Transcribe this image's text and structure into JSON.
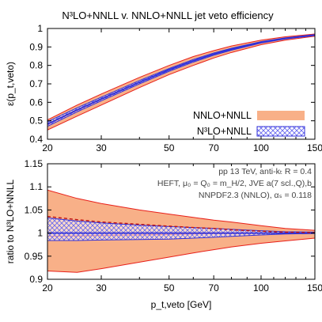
{
  "chart_data": [
    {
      "type": "area",
      "title": "N³LO+NNLL v. NNLO+NNLL jet veto efficiency",
      "ylabel": "ε(p_t,veto)",
      "xscale": "log",
      "xlim": [
        20,
        150
      ],
      "ylim": [
        0.4,
        1.0
      ],
      "x_ticks": [
        20,
        30,
        50,
        70,
        100,
        150
      ],
      "y_ticks": [
        0.4,
        0.5,
        0.6,
        0.7,
        0.8,
        0.9,
        1
      ],
      "legend_position": "right",
      "series": [
        {
          "name": "NNLO+NNLL",
          "color": "#f8b088",
          "edge_color": "#e8201a",
          "x": [
            20,
            25,
            30,
            40,
            50,
            60,
            70,
            80,
            100,
            120,
            150
          ],
          "upper": [
            0.505,
            0.585,
            0.645,
            0.735,
            0.8,
            0.848,
            0.88,
            0.905,
            0.937,
            0.955,
            0.97
          ],
          "lower": [
            0.45,
            0.525,
            0.585,
            0.68,
            0.75,
            0.8,
            0.84,
            0.87,
            0.912,
            0.937,
            0.958
          ],
          "central": [
            0.478,
            0.555,
            0.615,
            0.708,
            0.776,
            0.825,
            0.862,
            0.888,
            0.925,
            0.946,
            0.964
          ]
        },
        {
          "name": "N³LO+NNLL",
          "color": "#6a6aee",
          "x": [
            20,
            25,
            30,
            40,
            50,
            60,
            70,
            80,
            100,
            120,
            150
          ],
          "upper": [
            0.495,
            0.57,
            0.628,
            0.718,
            0.783,
            0.832,
            0.867,
            0.893,
            0.929,
            0.949,
            0.967
          ],
          "lower": [
            0.47,
            0.548,
            0.608,
            0.7,
            0.768,
            0.818,
            0.855,
            0.882,
            0.921,
            0.943,
            0.962
          ],
          "central": [
            0.482,
            0.559,
            0.618,
            0.709,
            0.776,
            0.825,
            0.861,
            0.888,
            0.925,
            0.946,
            0.964
          ]
        }
      ]
    },
    {
      "type": "area",
      "xlabel": "p_t,veto [GeV]",
      "ylabel": "ratio to N³LO+NNLL",
      "xscale": "log",
      "xlim": [
        20,
        150
      ],
      "ylim": [
        0.9,
        1.15
      ],
      "x_ticks": [
        20,
        30,
        50,
        70,
        100,
        150
      ],
      "y_ticks": [
        0.9,
        0.95,
        1,
        1.05,
        1.1,
        1.15
      ],
      "series": [
        {
          "name": "NNLO+NNLL",
          "x": [
            20,
            25,
            30,
            40,
            50,
            60,
            70,
            80,
            100,
            120,
            150
          ],
          "upper": [
            1.093,
            1.075,
            1.064,
            1.05,
            1.041,
            1.034,
            1.028,
            1.024,
            1.016,
            1.01,
            1.006
          ],
          "lower": [
            0.918,
            0.915,
            0.923,
            0.937,
            0.948,
            0.957,
            0.964,
            0.97,
            0.978,
            0.983,
            0.989
          ],
          "central": [
            0.993,
            0.994,
            0.995,
            0.996,
            0.997,
            0.998,
            0.999,
            0.999,
            1.0,
            1.0,
            1.0
          ]
        },
        {
          "name": "N³LO+NNLL",
          "x": [
            20,
            25,
            30,
            40,
            50,
            60,
            70,
            80,
            100,
            120,
            150
          ],
          "upper": [
            1.033,
            1.026,
            1.022,
            1.017,
            1.014,
            1.012,
            1.01,
            1.008,
            1.005,
            1.003,
            1.002
          ],
          "lower": [
            0.984,
            0.984,
            0.985,
            0.986,
            0.987,
            0.989,
            0.991,
            0.993,
            0.996,
            0.998,
            0.999
          ],
          "central": [
            1,
            1,
            1,
            1,
            1,
            1,
            1,
            1,
            1,
            1,
            1
          ],
          "ref_upper": [
            1.036,
            1.029,
            1.024,
            1.019,
            1.015,
            1.012,
            1.01,
            1.007,
            1.004,
            1.002,
            1.001
          ]
        }
      ],
      "annotations": [
        "pp 13 TeV, anti-kₜ R = 0.4",
        "HEFT, μ₀ = Q₀ = m_H/2, JVE a(7 scl.,Q),b",
        "NNPDF2.3 (NNLO), αₛ = 0.118"
      ]
    }
  ],
  "colors": {
    "nnlo_fill": "#f8b088",
    "nnlo_edge": "#e8201a",
    "n3lo_edge": "#3030d8",
    "n3lo_hatch": "#6a6aee",
    "dashed_ref": "#c01010"
  }
}
